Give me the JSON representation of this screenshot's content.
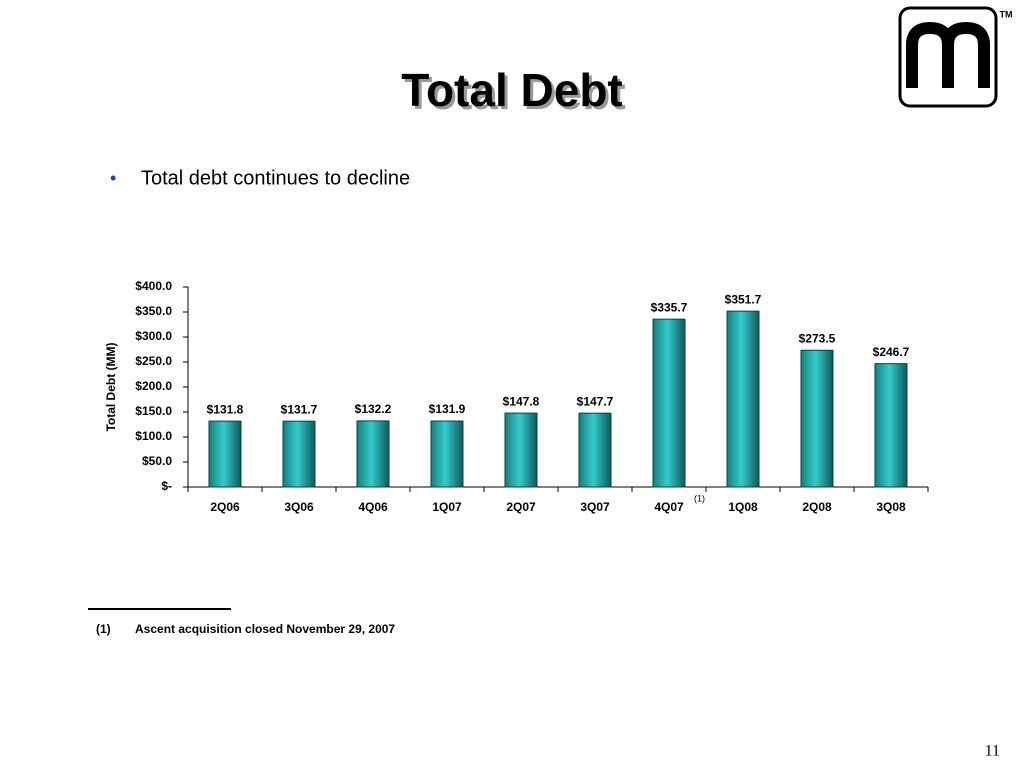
{
  "slide": {
    "title": "Total Debt",
    "bullet": "Total debt continues to decline",
    "trademark": "TM",
    "footnote": {
      "marker": "(1)",
      "text": "Ascent acquisition closed November 29, 2007"
    },
    "page_number": "11"
  },
  "chart_data": {
    "type": "bar",
    "y_label": "Total Debt (MM)",
    "categories": [
      "2Q06",
      "3Q06",
      "4Q06",
      "1Q07",
      "2Q07",
      "3Q07",
      "4Q07",
      "1Q08",
      "2Q08",
      "3Q08"
    ],
    "values": [
      131.8,
      131.7,
      132.2,
      131.9,
      147.8,
      147.7,
      335.7,
      351.7,
      273.5,
      246.7
    ],
    "value_labels": [
      "$131.8",
      "$131.7",
      "$132.2",
      "$131.9",
      "$147.8",
      "$147.7",
      "$335.7",
      "$351.7",
      "$273.5",
      "$246.7"
    ],
    "annotations": [
      {
        "text": "(1)",
        "category": "4Q07"
      }
    ],
    "color": "#33cccc",
    "ylim": [
      0,
      400
    ],
    "yticks": [
      {
        "value": 0,
        "label": "$-"
      },
      {
        "value": 50,
        "label": "$50.0"
      },
      {
        "value": 100,
        "label": "$100.0"
      },
      {
        "value": 150,
        "label": "$150.0"
      },
      {
        "value": 200,
        "label": "$200.0"
      },
      {
        "value": 250,
        "label": "$250.0"
      },
      {
        "value": 300,
        "label": "$300.0"
      },
      {
        "value": 350,
        "label": "$350.0"
      },
      {
        "value": 400,
        "label": "$400.0"
      }
    ]
  }
}
